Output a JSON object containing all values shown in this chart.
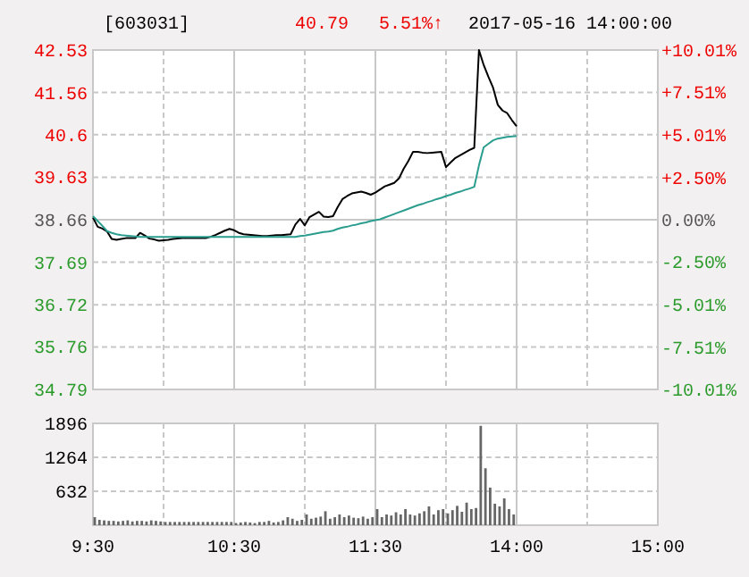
{
  "chart_data": [
    {
      "type": "line",
      "title": "[603031]",
      "annotations": [
        "40.79",
        "5.51%↑",
        "2017-05-16 14:00:00"
      ],
      "categories": [
        null,
        null,
        null,
        null,
        null,
        null,
        null,
        null,
        null,
        null,
        null,
        null,
        null,
        null,
        null,
        null,
        null,
        null,
        null,
        null,
        null,
        null,
        null,
        null,
        null,
        null,
        null,
        null,
        null,
        null,
        null,
        null,
        null,
        null,
        null,
        null,
        null,
        null,
        null,
        null,
        null,
        null,
        null,
        null,
        null,
        null,
        null,
        null,
        null,
        null,
        null,
        null,
        null,
        null,
        null,
        null,
        null,
        null,
        null,
        null,
        null,
        null,
        null,
        null,
        null,
        null,
        null,
        null,
        null,
        null,
        null,
        null,
        null,
        null,
        null,
        null,
        null,
        null,
        null,
        null,
        null,
        null,
        null,
        null,
        null,
        null,
        null,
        null,
        null,
        null,
        null,
        null,
        null,
        null,
        null,
        null,
        null,
        null,
        null,
        null,
        null,
        null,
        null,
        null,
        null,
        null,
        null,
        null,
        null,
        null,
        null,
        null,
        null,
        null,
        null,
        null,
        null,
        null,
        null,
        null,
        null
      ],
      "series": [
        {
          "color": "#000000",
          "values": [
            38.71,
            38.5,
            38.46,
            38.39,
            38.22,
            38.2,
            38.22,
            38.24,
            38.24,
            38.24,
            38.36,
            38.3,
            38.23,
            38.21,
            38.18,
            38.19,
            38.2,
            38.22,
            38.23,
            38.24,
            38.24,
            38.24,
            38.24,
            38.24,
            38.24,
            38.27,
            38.31,
            38.36,
            38.41,
            38.45,
            38.42,
            38.36,
            38.33,
            38.32,
            38.31,
            38.3,
            38.29,
            38.29,
            38.3,
            38.31,
            38.31,
            38.32,
            38.33,
            38.55,
            38.68,
            38.53,
            38.72,
            38.78,
            38.84,
            38.73,
            38.72,
            38.74,
            38.95,
            39.13,
            39.2,
            39.26,
            39.28,
            39.3,
            39.27,
            39.23,
            39.28,
            39.35,
            39.42,
            39.46,
            39.5,
            39.6,
            39.82,
            40.0,
            40.21,
            40.21,
            40.19,
            40.18,
            40.19,
            40.2,
            40.21,
            39.86,
            39.97,
            40.07,
            40.13,
            40.19,
            40.25,
            40.3,
            42.53,
            42.19,
            41.92,
            41.67,
            41.28,
            41.15,
            41.09,
            40.93,
            40.79,
            null,
            null,
            null,
            null,
            null,
            null,
            null,
            null,
            null,
            null,
            null,
            null,
            null,
            null,
            null,
            null,
            null,
            null,
            null,
            null,
            null,
            null,
            null,
            null,
            null,
            null,
            null,
            null,
            null,
            null
          ]
        },
        {
          "color": "#2a9d8f",
          "values": [
            38.74,
            38.63,
            38.52,
            38.4,
            38.36,
            38.33,
            38.31,
            38.3,
            38.29,
            38.28,
            38.27,
            38.27,
            38.27,
            38.27,
            38.27,
            38.27,
            38.27,
            38.27,
            38.27,
            38.27,
            38.27,
            38.27,
            38.27,
            38.27,
            38.27,
            38.27,
            38.27,
            38.27,
            38.27,
            38.27,
            38.27,
            38.27,
            38.27,
            38.27,
            38.27,
            38.27,
            38.27,
            38.27,
            38.27,
            38.27,
            38.27,
            38.27,
            38.27,
            38.27,
            38.29,
            38.3,
            38.32,
            38.34,
            38.36,
            38.38,
            38.39,
            38.41,
            38.45,
            38.48,
            38.5,
            38.53,
            38.55,
            38.58,
            38.6,
            38.63,
            38.65,
            38.67,
            38.71,
            38.75,
            38.79,
            38.83,
            38.87,
            38.91,
            38.95,
            38.99,
            39.02,
            39.06,
            39.09,
            39.13,
            39.16,
            39.2,
            39.23,
            39.27,
            39.3,
            39.34,
            39.37,
            39.41,
            39.9,
            40.31,
            40.39,
            40.47,
            40.51,
            40.53,
            40.55,
            40.56,
            40.57,
            null,
            null,
            null,
            null,
            null,
            null,
            null,
            null,
            null,
            null,
            null,
            null,
            null,
            null,
            null,
            null,
            null,
            null,
            null,
            null,
            null,
            null,
            null,
            null,
            null,
            null,
            null,
            null,
            null,
            null
          ]
        }
      ],
      "ylim": [
        34.79,
        42.53
      ],
      "yticks": [
        34.79,
        35.76,
        36.72,
        37.69,
        38.66,
        39.63,
        40.6,
        41.56,
        42.53
      ],
      "y2lim": [
        -10.01,
        10.01
      ],
      "y2ticks": [
        {
          "value": -10.01,
          "label": "-10.01%"
        },
        {
          "value": -7.51,
          "label": "-7.51%"
        },
        {
          "value": -5.01,
          "label": "-5.01%"
        },
        {
          "value": -2.5,
          "label": "-2.50%"
        },
        {
          "value": 0,
          "label": "0.00%"
        },
        {
          "value": 2.5,
          "label": "+2.50%"
        },
        {
          "value": 5.01,
          "label": "+5.01%"
        },
        {
          "value": 7.51,
          "label": "+7.51%"
        },
        {
          "value": 10.01,
          "label": "+10.01%"
        }
      ],
      "grid": true,
      "tick_labels": "y",
      "line_style": "solid"
    },
    {
      "type": "bar",
      "color": "#666666",
      "categories": [
        "9:30",
        null,
        null,
        null,
        null,
        null,
        null,
        null,
        null,
        null,
        null,
        null,
        null,
        null,
        null,
        null,
        null,
        null,
        null,
        null,
        null,
        null,
        null,
        null,
        null,
        null,
        null,
        null,
        null,
        null,
        "10:30",
        null,
        null,
        null,
        null,
        null,
        null,
        null,
        null,
        null,
        null,
        null,
        null,
        null,
        null,
        null,
        null,
        null,
        null,
        null,
        null,
        null,
        null,
        null,
        null,
        null,
        null,
        null,
        null,
        null,
        "11:30",
        null,
        null,
        null,
        null,
        null,
        null,
        null,
        null,
        null,
        null,
        null,
        null,
        null,
        null,
        null,
        null,
        null,
        null,
        null,
        null,
        null,
        null,
        null,
        null,
        null,
        null,
        null,
        null,
        null,
        "14:00",
        null,
        null,
        null,
        null,
        null,
        null,
        null,
        null,
        null,
        null,
        null,
        null,
        null,
        null,
        null,
        null,
        null,
        null,
        null,
        null,
        null,
        null,
        null,
        null,
        null,
        null,
        null,
        null,
        null,
        "15:00"
      ],
      "values": [
        150,
        100,
        90,
        80,
        80,
        70,
        80,
        90,
        70,
        80,
        80,
        70,
        90,
        80,
        70,
        60,
        60,
        60,
        60,
        60,
        60,
        60,
        60,
        60,
        60,
        60,
        60,
        60,
        60,
        60,
        40,
        50,
        60,
        50,
        40,
        60,
        60,
        80,
        50,
        60,
        90,
        150,
        120,
        80,
        100,
        200,
        120,
        140,
        160,
        260,
        120,
        150,
        200,
        150,
        180,
        140,
        130,
        160,
        120,
        150,
        300,
        150,
        200,
        180,
        240,
        200,
        300,
        200,
        180,
        220,
        260,
        350,
        200,
        280,
        300,
        220,
        280,
        360,
        250,
        420,
        300,
        320,
        1850,
        1060,
        700,
        400,
        350,
        500,
        300,
        200,
        null,
        null,
        null,
        null,
        null,
        null,
        null,
        null,
        null,
        null,
        null,
        null,
        null,
        null,
        null,
        null,
        null,
        null,
        null,
        null,
        null,
        null,
        null,
        null,
        null,
        null,
        null,
        null,
        null,
        null,
        null
      ],
      "ylim": [
        0,
        1896
      ],
      "yticks": [
        632,
        1264,
        1896
      ],
      "grid": true
    }
  ]
}
